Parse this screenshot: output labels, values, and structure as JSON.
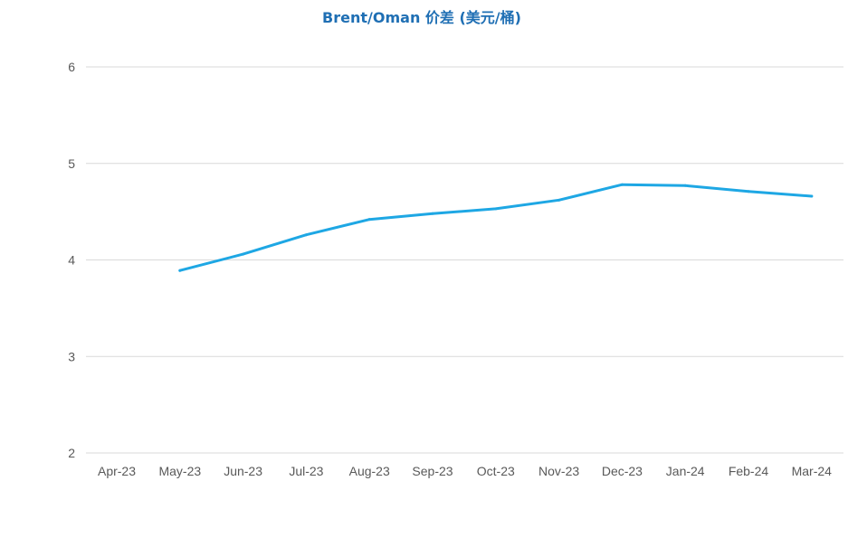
{
  "chart_data": {
    "type": "line",
    "title": "Brent/Oman 价差 (美元/桶)",
    "xlabel": "",
    "ylabel": "",
    "categories": [
      "Apr-23",
      "May-23",
      "Jun-23",
      "Jul-23",
      "Aug-23",
      "Sep-23",
      "Oct-23",
      "Nov-23",
      "Dec-23",
      "Jan-24",
      "Feb-24",
      "Mar-24"
    ],
    "y_ticks": [
      "2",
      "3",
      "4",
      "5",
      "6"
    ],
    "ylim": [
      2,
      6
    ],
    "grid": true,
    "legend": "none",
    "series": [
      {
        "values": [
          null,
          3.89,
          4.06,
          4.26,
          4.42,
          4.48,
          4.53,
          4.62,
          4.78,
          4.77,
          4.71,
          4.66
        ]
      }
    ]
  },
  "colors": {
    "title": "#1f6fb4",
    "line": "#1ea7e4",
    "grid": "#d9d9d9",
    "tick": "#595959"
  }
}
